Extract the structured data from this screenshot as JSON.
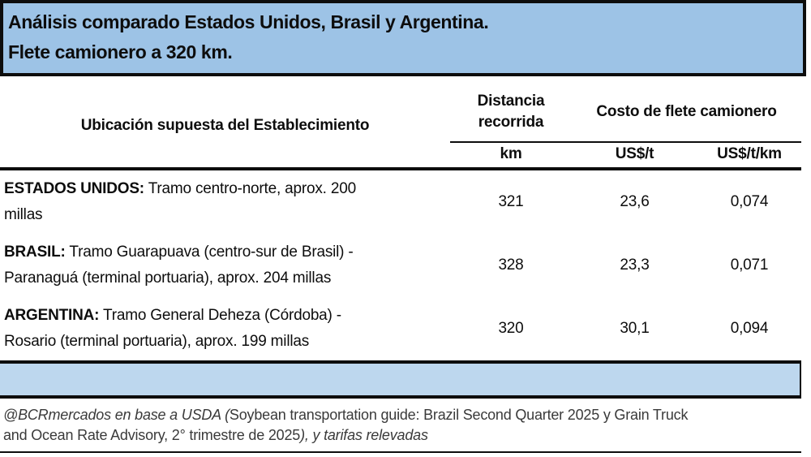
{
  "header": {
    "title_line1": "Análisis comparado Estados Unidos, Brasil y Argentina.",
    "title_line2": "Flete camionero a 320 km."
  },
  "table": {
    "col_location": "Ubicación supuesta del Establecimiento",
    "col_distance": "Distancia recorrida",
    "col_cost": "Costo de flete camionero",
    "unit_km": "km",
    "unit_usd_t": "US$/t",
    "unit_usd_t_km": "US$/t/km",
    "rows": [
      {
        "country": "ESTADOS UNIDOS:",
        "route": "Tramo centro-norte, aprox. 200 millas",
        "km": "321",
        "usd_t": "23,6",
        "usd_t_km": "0,074"
      },
      {
        "country": "BRASIL:",
        "route": "Tramo Guarapuava (centro-sur de Brasil) - Paranaguá (terminal portuaria), aprox. 204 millas",
        "km": "328",
        "usd_t": "23,3",
        "usd_t_km": "0,071"
      },
      {
        "country": "ARGENTINA:",
        "route": "Tramo General Deheza (Córdoba) - Rosario (terminal portuaria), aprox. 199 millas",
        "km": "320",
        "usd_t": "30,1",
        "usd_t_km": "0,094"
      }
    ]
  },
  "footer": {
    "line1_italic": "@BCRmercados en base a USDA (",
    "line1_regular": "Soybean transportation guide: Brazil Second Quarter 2025 y Grain Truck",
    "line2_regular": "and Ocean Rate Advisory, 2° trimestre de 2025",
    "line2_italic": "), y tarifas relevadas"
  },
  "colors": {
    "header_background": "#9DC3E6",
    "separator_bar_background": "#BDD7EE",
    "border": "#0D0D0D",
    "footer_text": "#3A3A3A"
  },
  "chart_data": {
    "type": "table",
    "title": "Análisis comparado Estados Unidos, Brasil y Argentina. Flete camionero a 320 km.",
    "columns": [
      "Ubicación supuesta del Establecimiento",
      "Distancia recorrida (km)",
      "Costo de flete camionero (US$/t)",
      "Costo de flete camionero (US$/t/km)"
    ],
    "rows": [
      [
        "ESTADOS UNIDOS: Tramo centro-norte, aprox. 200 millas",
        321,
        23.6,
        0.074
      ],
      [
        "BRASIL: Tramo Guarapuava (centro-sur de Brasil) - Paranaguá (terminal portuaria), aprox. 204 millas",
        328,
        23.3,
        0.071
      ],
      [
        "ARGENTINA: Tramo General Deheza (Córdoba) - Rosario (terminal portuaria), aprox. 199 millas",
        320,
        30.1,
        0.094
      ]
    ],
    "source": "@BCRmercados en base a USDA (Soybean transportation guide: Brazil Second Quarter 2025 y Grain Truck and Ocean Rate Advisory, 2° trimestre de 2025), y tarifas relevadas"
  }
}
